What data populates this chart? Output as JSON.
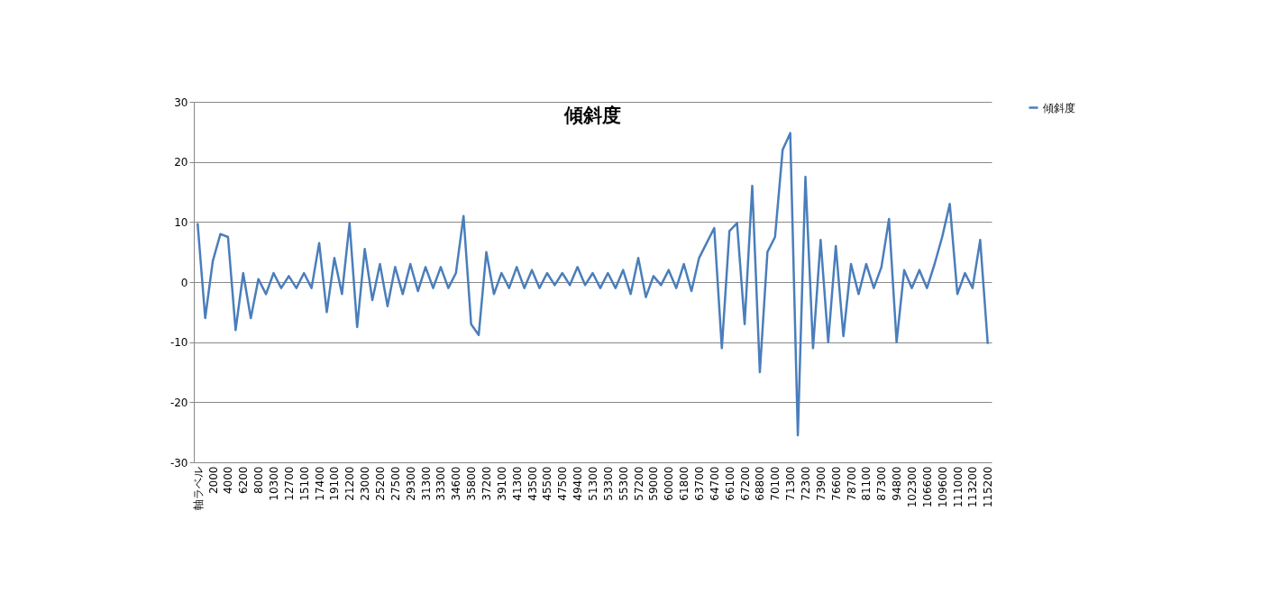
{
  "chart_data": {
    "type": "line",
    "title": "傾斜度",
    "categories": [
      "軸ラベル",
      null,
      "2000",
      null,
      "4000",
      null,
      "6200",
      null,
      "8000",
      null,
      "10300",
      null,
      "12700",
      null,
      "15100",
      null,
      "17400",
      null,
      "19100",
      null,
      "21200",
      null,
      "23000",
      null,
      "25200",
      null,
      "27500",
      null,
      "29300",
      null,
      "31300",
      null,
      "33300",
      null,
      "34600",
      null,
      "35800",
      null,
      "37200",
      null,
      "39100",
      null,
      "41300",
      null,
      "43500",
      null,
      "45500",
      null,
      "47500",
      null,
      "49400",
      null,
      "51300",
      null,
      "53300",
      null,
      "55300",
      null,
      "57200",
      null,
      "59000",
      null,
      "60000",
      null,
      "61800",
      null,
      "63700",
      null,
      "64700",
      null,
      "66100",
      null,
      "67200",
      null,
      "68800",
      null,
      "70100",
      null,
      "71300",
      null,
      "72300",
      null,
      "73900",
      null,
      "76600",
      null,
      "78700",
      null,
      "81100",
      null,
      "87300",
      null,
      "94800",
      null,
      "102300",
      null,
      "106600",
      null,
      "109600",
      null,
      "111000",
      null,
      "113200",
      null,
      "115200"
    ],
    "series": [
      {
        "name": "傾斜度",
        "color": "#4a7ebb",
        "values": [
          9.8,
          -6,
          3.5,
          8,
          7.5,
          -8,
          1.5,
          -6,
          0.5,
          -2,
          1.5,
          -1,
          1,
          -1,
          1.5,
          -1,
          6.5,
          -5,
          4,
          -2,
          9.8,
          -7.5,
          5.5,
          -3,
          3,
          -4,
          2.5,
          -2,
          3,
          -1.5,
          2.5,
          -1,
          2.5,
          -1,
          1.5,
          11,
          -7,
          -8.8,
          5,
          -2,
          1.5,
          -1,
          2.5,
          -1,
          2,
          -1,
          1.5,
          -0.5,
          1.5,
          -0.5,
          2.5,
          -0.5,
          1.5,
          -1,
          1.5,
          -1,
          2,
          -2,
          4,
          -2.5,
          1,
          -0.5,
          2,
          -1,
          3,
          -1.5,
          4,
          6.5,
          9,
          -11,
          8.5,
          9.8,
          -7,
          16,
          -15,
          5,
          7.5,
          22,
          24.8,
          -25.5,
          17.5,
          -11,
          7,
          -10,
          6,
          -9,
          3,
          -2,
          3,
          -1,
          2.5,
          10.5,
          -10,
          2,
          -1,
          2,
          -1,
          3,
          7.5,
          13,
          -2,
          1.5,
          -1,
          7,
          -10.3
        ]
      }
    ],
    "ylim": [
      -30,
      30
    ],
    "yticks": [
      -30,
      -20,
      -10,
      0,
      10,
      20,
      30
    ],
    "grid": "y",
    "legend": "right",
    "line_style": "solid"
  }
}
